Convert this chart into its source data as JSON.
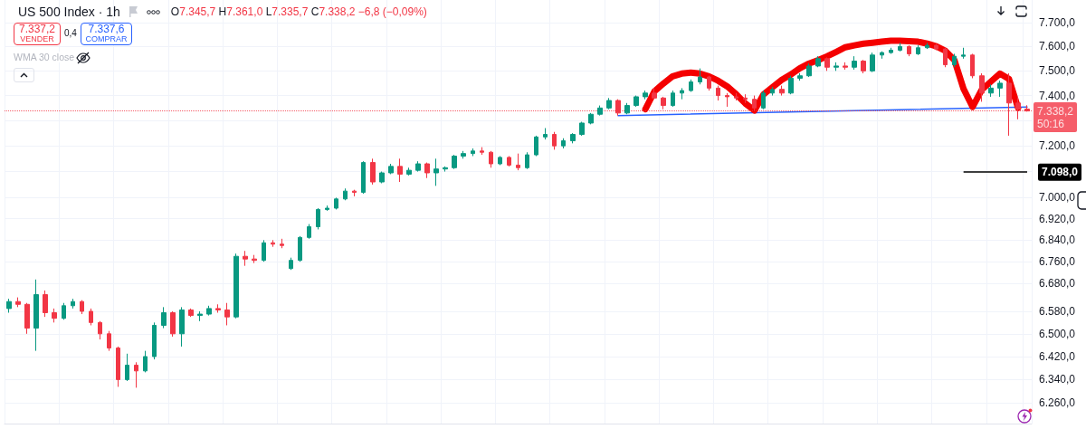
{
  "chart_data": {
    "type": "candlestick",
    "title": "US 500 Index · 1h",
    "categories": [
      null,
      null,
      null,
      null,
      null,
      null,
      null,
      null,
      null,
      null,
      null,
      null,
      null,
      null,
      null,
      null,
      null,
      null,
      null,
      null,
      null,
      null,
      null,
      null,
      null,
      null,
      null,
      null,
      null,
      null,
      null,
      null,
      null,
      null,
      null,
      null,
      null,
      null,
      null,
      null,
      null,
      null,
      null,
      null,
      null,
      null,
      null,
      null,
      null,
      null,
      null,
      null,
      null,
      null,
      null,
      null,
      null,
      null,
      null,
      null,
      null,
      null,
      null,
      null,
      null,
      null,
      null,
      null,
      null,
      null,
      null,
      null,
      null,
      null,
      null,
      null,
      null,
      null,
      null,
      null,
      null,
      null,
      null,
      null,
      null,
      null,
      null,
      null,
      null,
      null,
      null,
      null,
      null,
      null,
      null,
      null,
      null,
      null,
      null,
      null,
      null,
      null,
      null,
      null,
      null,
      null,
      null,
      null,
      null,
      null,
      null,
      null,
      null
    ],
    "series": [
      {
        "ohlc": [
          [
            6590,
            6625,
            6575,
            6615
          ],
          [
            6615,
            6630,
            6595,
            6605
          ],
          [
            6605,
            6610,
            6500,
            6520
          ],
          [
            6520,
            6695,
            6440,
            6640
          ],
          [
            6640,
            6655,
            6560,
            6575
          ],
          [
            6575,
            6590,
            6540,
            6555
          ],
          [
            6555,
            6610,
            6550,
            6600
          ],
          [
            6600,
            6625,
            6590,
            6615
          ],
          [
            6615,
            6620,
            6570,
            6580
          ],
          [
            6580,
            6590,
            6530,
            6540
          ],
          [
            6540,
            6545,
            6480,
            6500
          ],
          [
            6500,
            6510,
            6440,
            6450
          ],
          [
            6450,
            6455,
            6315,
            6340
          ],
          [
            6340,
            6430,
            6335,
            6390
          ],
          [
            6390,
            6400,
            6312,
            6370
          ],
          [
            6370,
            6440,
            6365,
            6420
          ],
          [
            6420,
            6540,
            6410,
            6530
          ],
          [
            6530,
            6595,
            6520,
            6575
          ],
          [
            6575,
            6580,
            6490,
            6500
          ],
          [
            6500,
            6595,
            6455,
            6585
          ],
          [
            6585,
            6590,
            6560,
            6565
          ],
          [
            6565,
            6580,
            6545,
            6570
          ],
          [
            6570,
            6600,
            6565,
            6590
          ],
          [
            6590,
            6605,
            6575,
            6585
          ],
          [
            6585,
            6610,
            6530,
            6560
          ],
          [
            6560,
            6790,
            6555,
            6780
          ],
          [
            6780,
            6800,
            6745,
            6770
          ],
          [
            6770,
            6785,
            6755,
            6765
          ],
          [
            6765,
            6840,
            6760,
            6830
          ],
          [
            6830,
            6840,
            6815,
            6825
          ],
          [
            6825,
            6845,
            6810,
            6820
          ],
          [
            6735,
            6775,
            6730,
            6765
          ],
          [
            6765,
            6855,
            6760,
            6850
          ],
          [
            6850,
            6900,
            6845,
            6890
          ],
          [
            6890,
            6960,
            6880,
            6955
          ],
          [
            6955,
            6970,
            6950,
            6960
          ],
          [
            6960,
            7000,
            6955,
            6995
          ],
          [
            6995,
            7035,
            6990,
            7025
          ],
          [
            7025,
            7030,
            7005,
            7020
          ],
          [
            7020,
            7140,
            7015,
            7135
          ],
          [
            7135,
            7150,
            7050,
            7060
          ],
          [
            7060,
            7100,
            7055,
            7095
          ],
          [
            7095,
            7130,
            7090,
            7120
          ],
          [
            7120,
            7150,
            7060,
            7090
          ],
          [
            7090,
            7115,
            7085,
            7105
          ],
          [
            7105,
            7140,
            7100,
            7130
          ],
          [
            7130,
            7135,
            7075,
            7095
          ],
          [
            7095,
            7150,
            7045,
            7110
          ],
          [
            7110,
            7120,
            7100,
            7115
          ],
          [
            7115,
            7165,
            7110,
            7160
          ],
          [
            7160,
            7180,
            7150,
            7170
          ],
          [
            7170,
            7190,
            7160,
            7180
          ],
          [
            7180,
            7195,
            7165,
            7175
          ],
          [
            7175,
            7180,
            7115,
            7130
          ],
          [
            7130,
            7160,
            7125,
            7155
          ],
          [
            7155,
            7160,
            7120,
            7125
          ],
          [
            7125,
            7170,
            7105,
            7115
          ],
          [
            7115,
            7175,
            7110,
            7165
          ],
          [
            7165,
            7240,
            7160,
            7235
          ],
          [
            7235,
            7270,
            7225,
            7245
          ],
          [
            7245,
            7255,
            7185,
            7200
          ],
          [
            7200,
            7230,
            7190,
            7220
          ],
          [
            7220,
            7250,
            7210,
            7245
          ],
          [
            7245,
            7295,
            7240,
            7290
          ],
          [
            7290,
            7330,
            7285,
            7325
          ],
          [
            7325,
            7360,
            7320,
            7350
          ],
          [
            7350,
            7390,
            7345,
            7380
          ],
          [
            7380,
            7385,
            7320,
            7330
          ],
          [
            7330,
            7370,
            7325,
            7360
          ],
          [
            7360,
            7400,
            7355,
            7395
          ],
          [
            7395,
            7420,
            7385,
            7410
          ],
          [
            7410,
            7430,
            7385,
            7390
          ],
          [
            7390,
            7395,
            7345,
            7360
          ],
          [
            7360,
            7420,
            7355,
            7410
          ],
          [
            7410,
            7430,
            7385,
            7420
          ],
          [
            7420,
            7465,
            7415,
            7455
          ],
          [
            7455,
            7510,
            7445,
            7475
          ],
          [
            7475,
            7480,
            7420,
            7430
          ],
          [
            7430,
            7440,
            7380,
            7400
          ],
          [
            7400,
            7410,
            7355,
            7395
          ],
          [
            7395,
            7410,
            7380,
            7390
          ],
          [
            7390,
            7405,
            7370,
            7385
          ],
          [
            7385,
            7400,
            7340,
            7350
          ],
          [
            7350,
            7420,
            7345,
            7410
          ],
          [
            7410,
            7435,
            7400,
            7425
          ],
          [
            7425,
            7440,
            7400,
            7410
          ],
          [
            7410,
            7480,
            7405,
            7470
          ],
          [
            7470,
            7490,
            7460,
            7480
          ],
          [
            7480,
            7530,
            7475,
            7520
          ],
          [
            7520,
            7560,
            7515,
            7550
          ],
          [
            7550,
            7555,
            7500,
            7515
          ],
          [
            7515,
            7535,
            7500,
            7520
          ],
          [
            7520,
            7535,
            7505,
            7515
          ],
          [
            7515,
            7560,
            7505,
            7540
          ],
          [
            7540,
            7545,
            7490,
            7500
          ],
          [
            7500,
            7575,
            7495,
            7565
          ],
          [
            7565,
            7580,
            7550,
            7575
          ],
          [
            7575,
            7595,
            7570,
            7585
          ],
          [
            7585,
            7615,
            7580,
            7600
          ],
          [
            7600,
            7605,
            7560,
            7570
          ],
          [
            7570,
            7605,
            7565,
            7595
          ],
          [
            7595,
            7615,
            7590,
            7605
          ],
          [
            7605,
            7610,
            7585,
            7590
          ],
          [
            7590,
            7595,
            7515,
            7525
          ],
          [
            7525,
            7570,
            7515,
            7560
          ],
          [
            7560,
            7595,
            7550,
            7565
          ],
          [
            7565,
            7570,
            7470,
            7480
          ],
          [
            7480,
            7490,
            7375,
            7410
          ],
          [
            7410,
            7445,
            7395,
            7430
          ],
          [
            7430,
            7460,
            7395,
            7450
          ],
          [
            7450,
            7490,
            7240,
            7370
          ],
          [
            7370,
            7395,
            7305,
            7345.7
          ],
          [
            7345.7,
            7361,
            7335.7,
            7338.2
          ]
        ],
        "colors": [
          "#089981",
          "#f23645",
          "#f23645",
          "#089981",
          "#f23645",
          "#f23645",
          "#089981",
          "#089981",
          "#f23645",
          "#f23645",
          "#f23645",
          "#f23645",
          "#f23645",
          "#089981",
          "#f23645",
          "#089981",
          "#089981",
          "#089981",
          "#f23645",
          "#089981",
          "#f23645",
          "#089981",
          "#089981",
          "#f23645",
          "#f23645",
          "#089981",
          "#f23645",
          "#f23645",
          "#089981",
          "#f23645",
          "#f23645",
          "#089981",
          "#089981",
          "#089981",
          "#089981",
          "#089981",
          "#089981",
          "#089981",
          "#f23645",
          "#089981",
          "#f23645",
          "#089981",
          "#089981",
          "#f23645",
          "#089981",
          "#089981",
          "#f23645",
          "#089981",
          "#089981",
          "#089981",
          "#089981",
          "#089981",
          "#f23645",
          "#f23645",
          "#089981",
          "#f23645",
          "#f23645",
          "#089981",
          "#089981",
          "#089981",
          "#f23645",
          "#089981",
          "#089981",
          "#089981",
          "#089981",
          "#089981",
          "#089981",
          "#f23645",
          "#089981",
          "#089981",
          "#089981",
          "#f23645",
          "#f23645",
          "#089981",
          "#089981",
          "#089981",
          "#089981",
          "#f23645",
          "#f23645",
          "#f23645",
          "#f23645",
          "#f23645",
          "#f23645",
          "#089981",
          "#089981",
          "#f23645",
          "#089981",
          "#089981",
          "#089981",
          "#089981",
          "#f23645",
          "#089981",
          "#f23645",
          "#089981",
          "#f23645",
          "#089981",
          "#089981",
          "#089981",
          "#089981",
          "#f23645",
          "#089981",
          "#089981",
          "#f23645",
          "#f23645",
          "#089981",
          "#089981",
          "#f23645",
          "#f23645",
          "#089981",
          "#089981",
          "#f23645",
          "#f23645",
          "#f23645"
        ]
      },
      {
        "type": "line",
        "color": "#2962ff",
        "values": [
          null,
          null,
          null,
          null,
          null,
          null,
          null,
          null,
          null,
          null,
          null,
          null,
          null,
          null,
          null,
          null,
          null,
          null,
          null,
          null,
          null,
          null,
          null,
          null,
          null,
          null,
          null,
          null,
          null,
          null,
          null,
          null,
          null,
          null,
          null,
          null,
          null,
          null,
          null,
          null,
          null,
          null,
          null,
          null,
          null,
          null,
          null,
          null,
          null,
          null,
          null,
          null,
          null,
          null,
          null,
          null,
          null,
          null,
          null,
          null,
          null,
          null,
          null,
          null,
          null,
          null,
          null,
          7320,
          null,
          null,
          null,
          null,
          null,
          null,
          null,
          null,
          null,
          null,
          null,
          null,
          null,
          null,
          null,
          null,
          null,
          null,
          null,
          null,
          null,
          null,
          null,
          null,
          null,
          null,
          null,
          null,
          null,
          null,
          null,
          null,
          null,
          null,
          null,
          null,
          null,
          null,
          null,
          null,
          null,
          null,
          null,
          null,
          7354
        ]
      },
      {
        "type": "line",
        "color": "#f40000",
        "values": [
          null,
          null,
          null,
          null,
          null,
          null,
          null,
          null,
          null,
          null,
          null,
          null,
          null,
          null,
          null,
          null,
          null,
          null,
          null,
          null,
          null,
          null,
          null,
          null,
          null,
          null,
          null,
          null,
          null,
          null,
          null,
          null,
          null,
          null,
          null,
          null,
          null,
          null,
          null,
          null,
          null,
          null,
          null,
          null,
          null,
          null,
          null,
          null,
          null,
          null,
          null,
          null,
          null,
          null,
          null,
          null,
          null,
          null,
          null,
          null,
          null,
          null,
          null,
          null,
          null,
          null,
          null,
          null,
          null,
          null,
          7345,
          7417,
          7449,
          7478,
          7489,
          7493,
          7489,
          7478,
          7460,
          7437,
          7405,
          7368,
          7340,
          7405,
          7434,
          7463,
          7485,
          7511,
          7530,
          7544,
          7560,
          7578,
          7597,
          7605,
          7612,
          7616,
          7620,
          7624,
          7624,
          7622,
          7620,
          7612,
          7601,
          7582,
          7544,
          7427,
          7354,
          7423,
          7456,
          7489,
          7467,
          7350,
          null
        ]
      }
    ],
    "ylim": [
      6190,
      7795
    ],
    "yticks": [
      {
        "value": 6260,
        "label": "6.260,0"
      },
      {
        "value": 6340,
        "label": "6.340,0"
      },
      {
        "value": 6420,
        "label": "6.420,0"
      },
      {
        "value": 6500,
        "label": "6.500,0"
      },
      {
        "value": 6580,
        "label": "6.580,0"
      },
      {
        "value": 6680,
        "label": "6.680,0"
      },
      {
        "value": 6760,
        "label": "6.760,0"
      },
      {
        "value": 6840,
        "label": "6.840,0"
      },
      {
        "value": 6920,
        "label": "6.920,0"
      },
      {
        "value": 7000,
        "label": "7.000,0"
      },
      {
        "value": 7100,
        "label": null
      },
      {
        "value": 7200,
        "label": "7.200,0"
      },
      {
        "value": 7300,
        "label": null
      },
      {
        "value": 7400,
        "label": "7.400,0"
      },
      {
        "value": 7500,
        "label": "7.500,0"
      },
      {
        "value": 7600,
        "label": "7.600,0"
      },
      {
        "value": 7700,
        "label": "7.700,0"
      }
    ],
    "log": true,
    "grid": true,
    "tick_labels": "y",
    "ref_lines": [
      {
        "axis": "y",
        "value": 7338.2,
        "label": "7.338,2",
        "color": "#f23645",
        "line_style": "dotted"
      },
      {
        "axis": "y",
        "value": 7098,
        "label": "7.098,0",
        "color": "#000000",
        "line_style": "solid"
      }
    ],
    "annotations": [
      "O7.345,7 H7.361,0 L7.335,7 C7.338,2 −6,8 (−0,09%)",
      "7.337,2",
      "VENDER",
      "0,4",
      "7.337,6",
      "COMPRAR",
      "WMA 30 close",
      "50:16"
    ]
  }
}
